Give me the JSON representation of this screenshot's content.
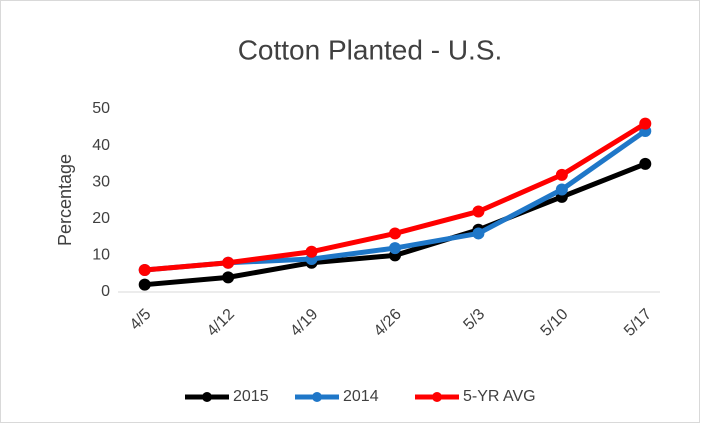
{
  "chart_data": {
    "type": "line",
    "title": "Cotton Planted - U.S.",
    "y_label": "Percentage",
    "categories": [
      "4/5",
      "4/12",
      "4/19",
      "4/26",
      "5/3",
      "5/10",
      "5/17"
    ],
    "series": [
      {
        "name": "2015",
        "color": "#000000",
        "values": [
          2,
          4,
          8,
          10,
          17,
          26,
          35
        ]
      },
      {
        "name": "2014",
        "color": "#1f77c8",
        "values": [
          6,
          8,
          9,
          12,
          16,
          28,
          44
        ]
      },
      {
        "name": "5-YR AVG",
        "color": "#ff0000",
        "values": [
          6,
          8,
          11,
          16,
          22,
          32,
          46
        ]
      }
    ],
    "ylim": [
      0,
      50
    ],
    "yticks": [
      0,
      10,
      20,
      30,
      40,
      50
    ],
    "grid": false,
    "legend": "bottom"
  }
}
